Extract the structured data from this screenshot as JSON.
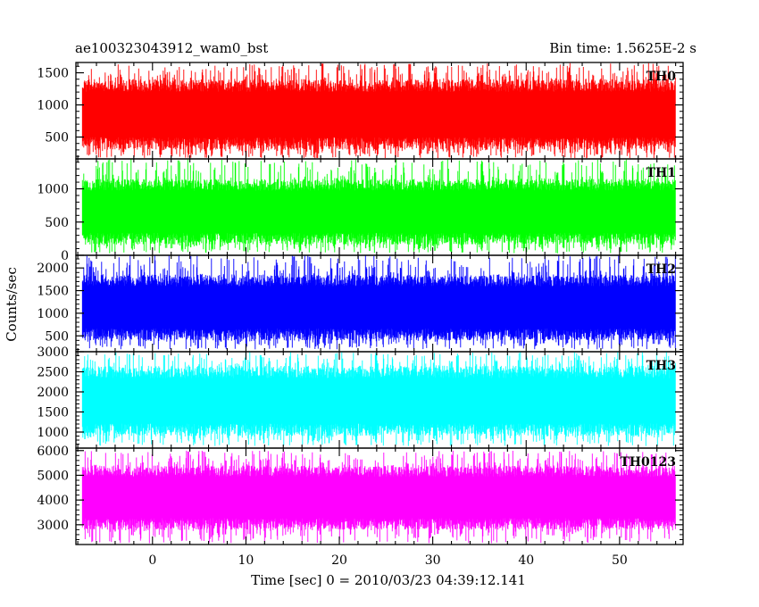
{
  "chart_data": {
    "type": "line",
    "title_left": "ae100323043912_wam0_bst",
    "title_right": "Bin time: 1.5625E-2 s",
    "xlabel": "Time [sec] 0 = 2010/03/23 04:39:12.141",
    "ylabel": "Counts/sec",
    "xlim": [
      -8.2,
      56.8
    ],
    "data_range": [
      -7.5,
      56.0
    ],
    "x_ticks": [
      0,
      10,
      20,
      30,
      40,
      50
    ],
    "x_tick_labels": [
      "0",
      "10",
      "20",
      "30",
      "40",
      "50"
    ],
    "grid": false,
    "panels": [
      {
        "name": "TH0",
        "color": "#ff0000",
        "ylim": [
          160,
          1660
        ],
        "y_ticks": [
          500,
          1000,
          1500
        ],
        "y_tick_labels": [
          "500",
          "1000",
          "1500"
        ],
        "mean": 750,
        "band_low": 300,
        "band_high": 1400,
        "min": 170,
        "max": 1650
      },
      {
        "name": "TH1",
        "color": "#00ff00",
        "ylim": [
          0,
          1450
        ],
        "y_ticks": [
          0,
          500,
          1000
        ],
        "y_tick_labels": [
          "0",
          "500",
          "1000"
        ],
        "mean": 600,
        "band_low": 160,
        "band_high": 1150,
        "min": 30,
        "max": 1450
      },
      {
        "name": "TH2",
        "color": "#0000ff",
        "ylim": [
          150,
          2280
        ],
        "y_ticks": [
          500,
          1000,
          1500,
          2000
        ],
        "y_tick_labels": [
          "500",
          "1000",
          "1500",
          "2000"
        ],
        "mean": 1100,
        "band_low": 400,
        "band_high": 1850,
        "min": 200,
        "max": 2280
      },
      {
        "name": "TH3",
        "color": "#00ffff",
        "ylim": [
          600,
          3000
        ],
        "y_ticks": [
          1000,
          1500,
          2000,
          2500,
          3000
        ],
        "y_tick_labels": [
          "1000",
          "1500",
          "2000",
          "2500",
          "3000"
        ],
        "mean": 1750,
        "band_low": 900,
        "band_high": 2650,
        "min": 650,
        "max": 3000
      },
      {
        "name": "TH0123",
        "color": "#ff00ff",
        "ylim": [
          2200,
          6100
        ],
        "y_ticks": [
          3000,
          4000,
          5000,
          6000
        ],
        "y_tick_labels": [
          "3000",
          "4000",
          "5000",
          "6000"
        ],
        "mean": 3900,
        "band_low": 2800,
        "band_high": 5400,
        "min": 2250,
        "max": 6000
      }
    ]
  }
}
